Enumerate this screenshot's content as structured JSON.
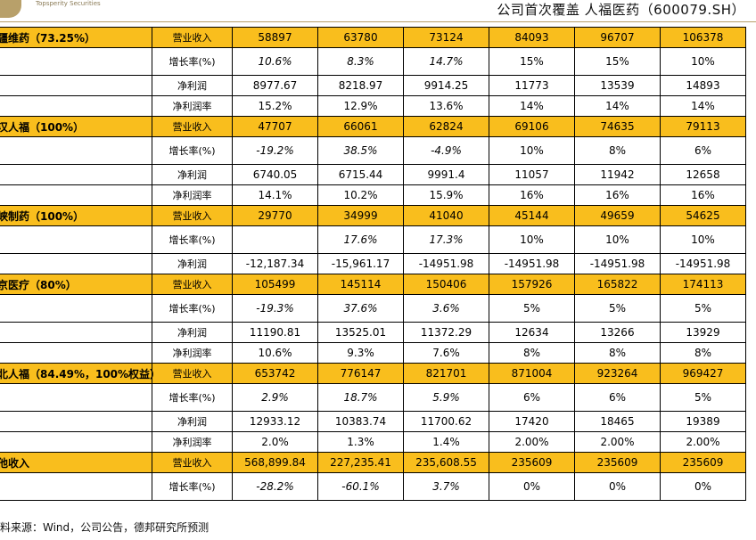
{
  "header": {
    "logo_text": "Topsperity Securities",
    "title": "公司首次覆盖  人福医药（600079.SH）"
  },
  "table": {
    "sections": [
      {
        "name": "疆维药（73.25%）",
        "rows": [
          {
            "label": "营业收入",
            "type": "rev",
            "values": [
              "58897",
              "63780",
              "73124",
              "84093",
              "96707",
              "106378"
            ]
          },
          {
            "label": "增长率(%)",
            "type": "growth",
            "values": [
              "10.6%",
              "8.3%",
              "14.7%",
              "15%",
              "15%",
              "10%"
            ]
          },
          {
            "label": "净利润",
            "type": "normal",
            "values": [
              "8977.67",
              "8218.97",
              "9914.25",
              "11773",
              "13539",
              "14893"
            ]
          },
          {
            "label": "净利润率",
            "type": "normal",
            "values": [
              "15.2%",
              "12.9%",
              "13.6%",
              "14%",
              "14%",
              "14%"
            ]
          }
        ]
      },
      {
        "name": "汉人福（100%）",
        "rows": [
          {
            "label": "营业收入",
            "type": "rev",
            "values": [
              "47707",
              "66061",
              "62824",
              "69106",
              "74635",
              "79113"
            ]
          },
          {
            "label": "增长率(%)",
            "type": "growth",
            "values": [
              "-19.2%",
              "38.5%",
              "-4.9%",
              "10%",
              "8%",
              "6%"
            ]
          },
          {
            "label": "净利润",
            "type": "normal",
            "values": [
              "6740.05",
              "6715.44",
              "9991.4",
              "11057",
              "11942",
              "12658"
            ]
          },
          {
            "label": "净利润率",
            "type": "normal",
            "values": [
              "14.1%",
              "10.2%",
              "15.9%",
              "16%",
              "16%",
              "16%"
            ]
          }
        ]
      },
      {
        "name": "峡制药（100%）",
        "rows": [
          {
            "label": "营业收入",
            "type": "rev",
            "values": [
              "29770",
              "34999",
              "41040",
              "45144",
              "49659",
              "54625"
            ]
          },
          {
            "label": "增长率(%)",
            "type": "growth",
            "values": [
              "",
              "17.6%",
              "17.3%",
              "10%",
              "10%",
              "10%"
            ]
          },
          {
            "label": "净利润",
            "type": "normal",
            "values": [
              "-12,187.34",
              "-15,961.17",
              "-14951.98",
              "-14951.98",
              "-14951.98",
              "-14951.98"
            ]
          }
        ]
      },
      {
        "name": "京医疗（80%）",
        "rows": [
          {
            "label": "营业收入",
            "type": "rev",
            "values": [
              "105499",
              "145114",
              "150406",
              "157926",
              "165822",
              "174113"
            ]
          },
          {
            "label": "增长率(%)",
            "type": "growth",
            "values": [
              "-19.3%",
              "37.6%",
              "3.6%",
              "5%",
              "5%",
              "5%"
            ]
          },
          {
            "label": "净利润",
            "type": "normal",
            "values": [
              "11190.81",
              "13525.01",
              "11372.29",
              "12634",
              "13266",
              "13929"
            ]
          },
          {
            "label": "净利润率",
            "type": "normal",
            "values": [
              "10.6%",
              "9.3%",
              "7.6%",
              "8%",
              "8%",
              "8%"
            ]
          }
        ]
      },
      {
        "name": "北人福（84.49%，100%权益）",
        "rows": [
          {
            "label": "营业收入",
            "type": "rev",
            "values": [
              "653742",
              "776147",
              "821701",
              "871004",
              "923264",
              "969427"
            ]
          },
          {
            "label": "增长率(%)",
            "type": "growth",
            "values": [
              "2.9%",
              "18.7%",
              "5.9%",
              "6%",
              "6%",
              "5%"
            ]
          },
          {
            "label": "净利润",
            "type": "normal",
            "values": [
              "12933.12",
              "10383.74",
              "11700.62",
              "17420",
              "18465",
              "19389"
            ]
          },
          {
            "label": "净利润率",
            "type": "normal",
            "values": [
              "2.0%",
              "1.3%",
              "1.4%",
              "2.00%",
              "2.00%",
              "2.00%"
            ]
          }
        ]
      },
      {
        "name": "他收入",
        "rows": [
          {
            "label": "营业收入",
            "type": "rev",
            "values": [
              "568,899.84",
              "227,235.41",
              "235,608.55",
              "235609",
              "235609",
              "235609"
            ]
          },
          {
            "label": "增长率(%)",
            "type": "growth",
            "values": [
              "-28.2%",
              "-60.1%",
              "3.7%",
              "0%",
              "0%",
              "0%"
            ]
          }
        ]
      }
    ],
    "italic_columns": 3
  },
  "source": "料来源：Wind，公司公告，德邦研究所预测"
}
